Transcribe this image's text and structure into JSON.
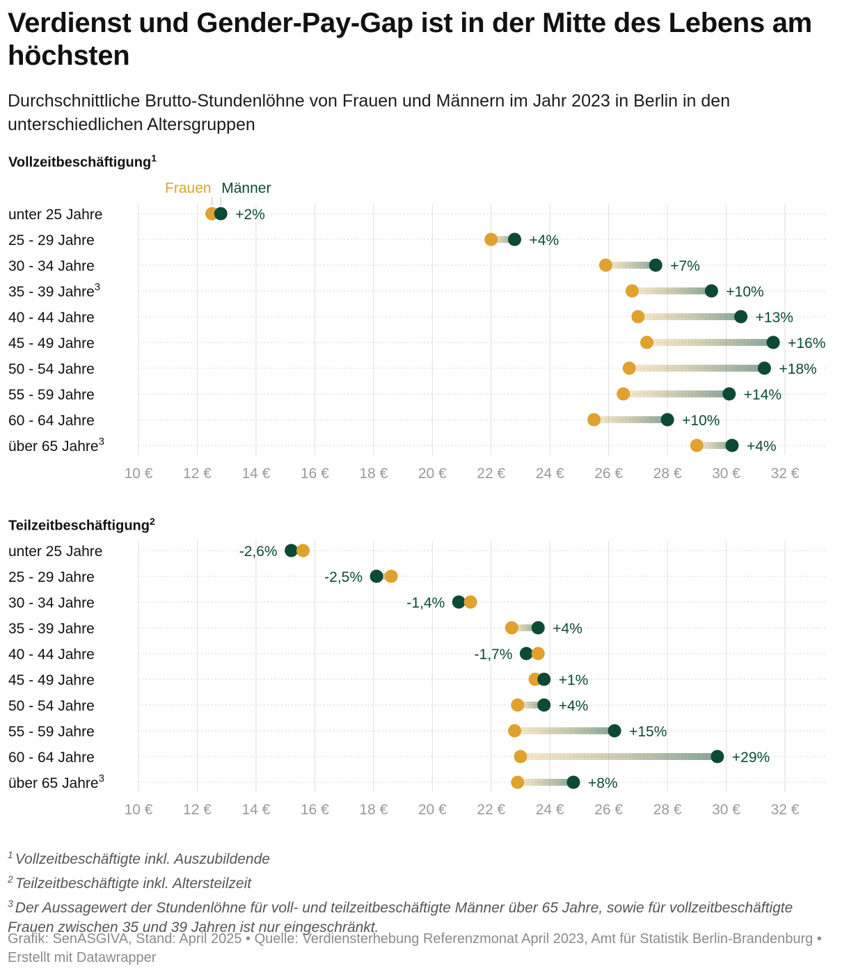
{
  "title": "Verdienst und Gender-Pay-Gap ist in der Mitte des Lebens am höchsten",
  "subtitle": "Durchschnittliche Brutto-Stundenlöhne von Frauen und Männern im Jahr 2023 in Berlin in den unterschiedlichen Altersgruppen",
  "colors": {
    "frauen": "#e0a12f",
    "maenner": "#0b4a35",
    "gap_label": "#0b4a35",
    "grid": "#dddddd",
    "tick": "#9a9a9a"
  },
  "chart_data": [
    {
      "type": "dot-range",
      "title": "Vollzeitbeschäftigung",
      "title_sup": "1",
      "legend": {
        "frauen": "Frauen",
        "maenner": "Männer"
      },
      "xlim": [
        10,
        32
      ],
      "xticks": [
        "10 €",
        "12 €",
        "14 €",
        "16 €",
        "18 €",
        "20 €",
        "22 €",
        "24 €",
        "26 €",
        "28 €",
        "30 €",
        "32 €"
      ],
      "categories": [
        "unter 25 Jahre",
        "25 - 29 Jahre",
        "30 - 34 Jahre",
        "35 - 39 Jahre",
        "40 - 44 Jahre",
        "45 - 49 Jahre",
        "50 - 54 Jahre",
        "55 - 59 Jahre",
        "60 - 64 Jahre",
        "über 65 Jahre"
      ],
      "category_sup": [
        "",
        "",
        "",
        "3",
        "",
        "",
        "",
        "",
        "",
        "3"
      ],
      "series": [
        {
          "name": "Frauen",
          "values": [
            12.5,
            22.0,
            25.9,
            26.8,
            27.0,
            27.3,
            26.7,
            26.5,
            25.5,
            29.0
          ]
        },
        {
          "name": "Männer",
          "values": [
            12.8,
            22.8,
            27.6,
            29.5,
            30.5,
            31.6,
            31.3,
            30.1,
            28.0,
            30.2
          ]
        }
      ],
      "gap_labels": [
        "+2%",
        "+4%",
        "+7%",
        "+10%",
        "+13%",
        "+16%",
        "+18%",
        "+14%",
        "+10%",
        "+4%"
      ]
    },
    {
      "type": "dot-range",
      "title": "Teilzeitbeschäftigung",
      "title_sup": "2",
      "xlim": [
        10,
        32
      ],
      "xticks": [
        "10 €",
        "12 €",
        "14 €",
        "16 €",
        "18 €",
        "20 €",
        "22 €",
        "24 €",
        "26 €",
        "28 €",
        "30 €",
        "32 €"
      ],
      "categories": [
        "unter 25 Jahre",
        "25 - 29 Jahre",
        "30 - 34 Jahre",
        "35 - 39 Jahre",
        "40 - 44 Jahre",
        "45 - 49 Jahre",
        "50 - 54 Jahre",
        "55 - 59 Jahre",
        "60 - 64 Jahre",
        "über 65 Jahre"
      ],
      "category_sup": [
        "",
        "",
        "",
        "",
        "",
        "",
        "",
        "",
        "",
        "3"
      ],
      "series": [
        {
          "name": "Frauen",
          "values": [
            15.6,
            18.6,
            21.3,
            22.7,
            23.6,
            23.5,
            22.9,
            22.8,
            23.0,
            22.9
          ]
        },
        {
          "name": "Männer",
          "values": [
            15.2,
            18.1,
            20.9,
            23.6,
            23.2,
            23.8,
            23.8,
            26.2,
            29.7,
            24.8
          ]
        }
      ],
      "gap_labels": [
        "-2,6%",
        "-2,5%",
        "-1,4%",
        "+4%",
        "-1,7%",
        "+1%",
        "+4%",
        "+15%",
        "+29%",
        "+8%"
      ]
    }
  ],
  "footnotes": [
    {
      "num": "1",
      "text": "Vollzeitbeschäftigte inkl. Auszubildende"
    },
    {
      "num": "2",
      "text": "Teilzeitbeschäftigte inkl. Altersteilzeit"
    },
    {
      "num": "3",
      "text": "Der Aussagewert der Stundenlöhne für voll- und teilzeitbeschäftigte Männer über 65 Jahre, sowie für vollzeitbeschäftigte Frauen zwischen 35 und 39 Jahren ist nur eingeschränkt."
    }
  ],
  "credit": "Grafik: SenASGIVA, Stand: April 2025 • Quelle: Verdiensterhebung Referenzmonat April 2023, Amt für Statistik Berlin-Brandenburg • Erstellt mit Datawrapper"
}
